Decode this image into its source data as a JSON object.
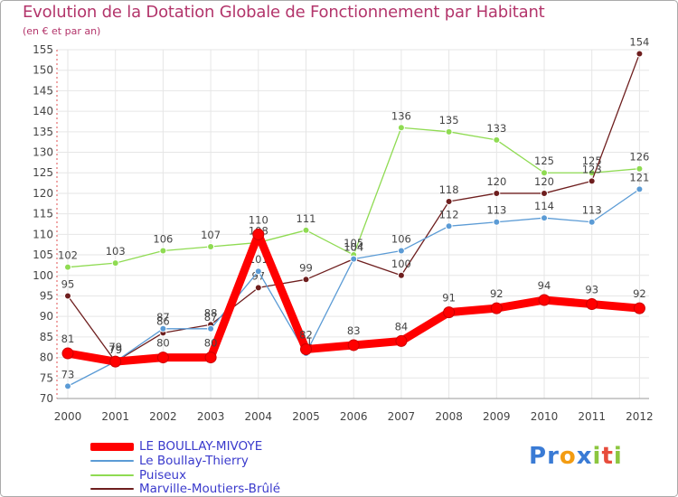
{
  "header": {
    "title": "Evolution de la Dotation Globale de Fonctionnement par Habitant",
    "subtitle": "(en € et par an)"
  },
  "logo": {
    "text": "Proxiti",
    "letters": [
      "P",
      "r",
      "o",
      "x",
      "i",
      "t",
      "i"
    ],
    "colors": [
      "#3a7bd5",
      "#3a7bd5",
      "#f39c12",
      "#3a7bd5",
      "#8cc63f",
      "#e74c3c",
      "#8cc63f"
    ]
  },
  "chart_data": {
    "type": "line",
    "title": "Evolution de la Dotation Globale de Fonctionnement par Habitant",
    "subtitle": "(en € et par an)",
    "xlabel": "",
    "ylabel": "",
    "x": [
      "2000",
      "2001",
      "2002",
      "2003",
      "2004",
      "2005",
      "2006",
      "2007",
      "2008",
      "2009",
      "2010",
      "2011",
      "2012"
    ],
    "ylim": [
      70,
      155
    ],
    "yticks": [
      70,
      75,
      80,
      85,
      90,
      95,
      100,
      105,
      110,
      115,
      120,
      125,
      130,
      135,
      140,
      145,
      150,
      155
    ],
    "grid": true,
    "legend_position": "bottom-left",
    "series": [
      {
        "name": "LE BOULLAY-MIVOYE",
        "color": "#ff0000",
        "values": [
          81,
          79,
          80,
          80,
          110,
          82,
          83,
          84,
          91,
          92,
          94,
          93,
          92
        ]
      },
      {
        "name": "Le Boullay-Thierry",
        "color": "#5b9bd5",
        "values": [
          73,
          79,
          87,
          87,
          101,
          81,
          104,
          106,
          112,
          113,
          114,
          113,
          121
        ]
      },
      {
        "name": "Puiseux",
        "color": "#8fdb52",
        "values": [
          102,
          103,
          106,
          107,
          108,
          111,
          105,
          136,
          135,
          133,
          125,
          125,
          126
        ]
      },
      {
        "name": "Marville-Moutiers-Brûlé",
        "color": "#6e1e1e",
        "values": [
          95,
          79,
          86,
          88,
          97,
          99,
          104,
          100,
          118,
          120,
          120,
          123,
          154
        ]
      }
    ]
  }
}
